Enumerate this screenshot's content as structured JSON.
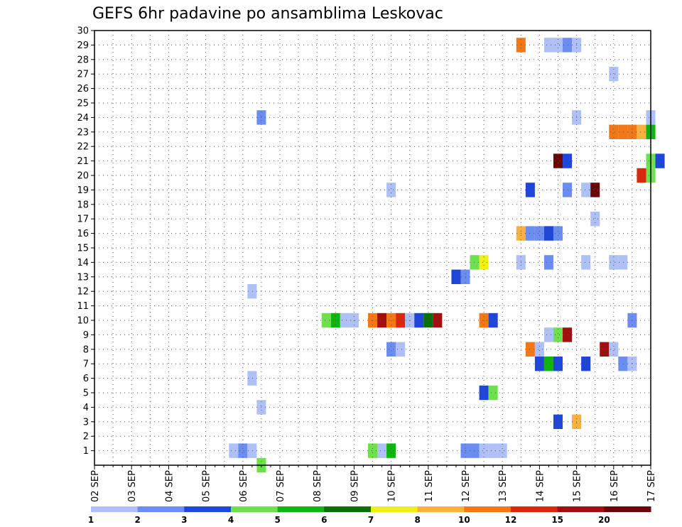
{
  "chart_data": {
    "type": "heatmap",
    "title": "GEFS 6hr padavine po ansamblima Leskovac",
    "xlabel": "",
    "ylabel": "",
    "x_ticks": [
      "02 SEP",
      "03 SEP",
      "04 SEP",
      "05 SEP",
      "06 SEP",
      "07 SEP",
      "08 SEP",
      "09 SEP",
      "10 SEP",
      "11 SEP",
      "12 SEP",
      "13 SEP",
      "14 SEP",
      "15 SEP",
      "16 SEP",
      "17 SEP"
    ],
    "x_range_days": [
      0,
      15
    ],
    "y_ticks": [
      1,
      2,
      3,
      4,
      5,
      6,
      7,
      8,
      9,
      10,
      11,
      12,
      13,
      14,
      15,
      16,
      17,
      18,
      19,
      20,
      21,
      22,
      23,
      24,
      25,
      26,
      27,
      28,
      29,
      30
    ],
    "ylim": [
      0,
      30
    ],
    "grid": true,
    "colorbar": {
      "bounds": [
        1,
        2,
        3,
        4,
        5,
        6,
        7,
        8,
        10,
        12,
        15,
        20
      ],
      "labels": [
        "1",
        "2",
        "3",
        "4",
        "5",
        "6",
        "7",
        "8",
        "10",
        "12",
        "15",
        "20"
      ],
      "colors": [
        "#aec0f5",
        "#6b8def",
        "#1e46d8",
        "#6ee04e",
        "#10b410",
        "#0a6e0a",
        "#f0f014",
        "#f8b040",
        "#f07818",
        "#d82810",
        "#a01010",
        "#6a0606"
      ]
    },
    "cells": [
      {
        "x": 3.75,
        "y": 1,
        "v": 1
      },
      {
        "x": 4.0,
        "y": 1,
        "v": 2
      },
      {
        "x": 4.25,
        "y": 1,
        "v": 1
      },
      {
        "x": 4.5,
        "y": 0,
        "v": 4
      },
      {
        "x": 7.5,
        "y": 1,
        "v": 4
      },
      {
        "x": 7.75,
        "y": 1,
        "v": 1
      },
      {
        "x": 8.0,
        "y": 1,
        "v": 5
      },
      {
        "x": 10.0,
        "y": 1,
        "v": 2
      },
      {
        "x": 10.25,
        "y": 1,
        "v": 2
      },
      {
        "x": 10.5,
        "y": 1,
        "v": 1
      },
      {
        "x": 10.75,
        "y": 1,
        "v": 1
      },
      {
        "x": 11.0,
        "y": 1,
        "v": 1
      },
      {
        "x": 12.5,
        "y": 3,
        "v": 3
      },
      {
        "x": 13.0,
        "y": 3,
        "v": 8
      },
      {
        "x": 4.5,
        "y": 4,
        "v": 1
      },
      {
        "x": 10.5,
        "y": 5,
        "v": 3
      },
      {
        "x": 10.75,
        "y": 5,
        "v": 4
      },
      {
        "x": 4.25,
        "y": 6,
        "v": 1
      },
      {
        "x": 12.0,
        "y": 7,
        "v": 3
      },
      {
        "x": 12.25,
        "y": 7,
        "v": 5
      },
      {
        "x": 12.5,
        "y": 7,
        "v": 3
      },
      {
        "x": 13.25,
        "y": 7,
        "v": 3
      },
      {
        "x": 14.25,
        "y": 7,
        "v": 2
      },
      {
        "x": 14.5,
        "y": 7,
        "v": 1
      },
      {
        "x": 8.0,
        "y": 8,
        "v": 2
      },
      {
        "x": 8.25,
        "y": 8,
        "v": 1
      },
      {
        "x": 11.75,
        "y": 8,
        "v": 10
      },
      {
        "x": 12.0,
        "y": 8,
        "v": 1
      },
      {
        "x": 13.75,
        "y": 8,
        "v": 15
      },
      {
        "x": 14.0,
        "y": 8,
        "v": 1
      },
      {
        "x": 12.25,
        "y": 9,
        "v": 1
      },
      {
        "x": 12.5,
        "y": 9,
        "v": 4
      },
      {
        "x": 12.75,
        "y": 9,
        "v": 15
      },
      {
        "x": 6.25,
        "y": 10,
        "v": 4
      },
      {
        "x": 6.5,
        "y": 10,
        "v": 5
      },
      {
        "x": 6.75,
        "y": 10,
        "v": 1
      },
      {
        "x": 7.0,
        "y": 10,
        "v": 1
      },
      {
        "x": 7.5,
        "y": 10,
        "v": 10
      },
      {
        "x": 7.75,
        "y": 10,
        "v": 15
      },
      {
        "x": 8.0,
        "y": 10,
        "v": 10
      },
      {
        "x": 8.25,
        "y": 10,
        "v": 12
      },
      {
        "x": 8.5,
        "y": 10,
        "v": 1
      },
      {
        "x": 8.75,
        "y": 10,
        "v": 3
      },
      {
        "x": 9.0,
        "y": 10,
        "v": 6
      },
      {
        "x": 9.25,
        "y": 10,
        "v": 15
      },
      {
        "x": 10.5,
        "y": 10,
        "v": 10
      },
      {
        "x": 10.75,
        "y": 10,
        "v": 3
      },
      {
        "x": 14.5,
        "y": 10,
        "v": 2
      },
      {
        "x": 4.25,
        "y": 12,
        "v": 1
      },
      {
        "x": 9.75,
        "y": 13,
        "v": 3
      },
      {
        "x": 10.0,
        "y": 13,
        "v": 2
      },
      {
        "x": 10.25,
        "y": 14,
        "v": 4
      },
      {
        "x": 10.5,
        "y": 14,
        "v": 7
      },
      {
        "x": 11.5,
        "y": 14,
        "v": 1
      },
      {
        "x": 12.25,
        "y": 14,
        "v": 2
      },
      {
        "x": 13.25,
        "y": 14,
        "v": 1
      },
      {
        "x": 14.0,
        "y": 14,
        "v": 1
      },
      {
        "x": 14.25,
        "y": 14,
        "v": 1
      },
      {
        "x": 11.5,
        "y": 16,
        "v": 8
      },
      {
        "x": 11.75,
        "y": 16,
        "v": 2
      },
      {
        "x": 12.0,
        "y": 16,
        "v": 2
      },
      {
        "x": 12.25,
        "y": 16,
        "v": 3
      },
      {
        "x": 12.5,
        "y": 16,
        "v": 2
      },
      {
        "x": 13.5,
        "y": 17,
        "v": 1
      },
      {
        "x": 8.0,
        "y": 19,
        "v": 1
      },
      {
        "x": 11.75,
        "y": 19,
        "v": 3
      },
      {
        "x": 12.75,
        "y": 19,
        "v": 2
      },
      {
        "x": 13.25,
        "y": 19,
        "v": 1
      },
      {
        "x": 13.5,
        "y": 19,
        "v": 20
      },
      {
        "x": 14.75,
        "y": 20,
        "v": 12
      },
      {
        "x": 15.0,
        "y": 20,
        "v": 4
      },
      {
        "x": 12.5,
        "y": 21,
        "v": 20
      },
      {
        "x": 12.75,
        "y": 21,
        "v": 3
      },
      {
        "x": 15.0,
        "y": 21,
        "v": 4
      },
      {
        "x": 15.25,
        "y": 21,
        "v": 3
      },
      {
        "x": 14.0,
        "y": 23,
        "v": 10
      },
      {
        "x": 14.25,
        "y": 23,
        "v": 10
      },
      {
        "x": 14.5,
        "y": 23,
        "v": 10
      },
      {
        "x": 14.75,
        "y": 23,
        "v": 8
      },
      {
        "x": 15.0,
        "y": 23,
        "v": 5
      },
      {
        "x": 4.5,
        "y": 24,
        "v": 2
      },
      {
        "x": 13.0,
        "y": 24,
        "v": 1
      },
      {
        "x": 15.0,
        "y": 24,
        "v": 1
      },
      {
        "x": 14.0,
        "y": 27,
        "v": 1
      },
      {
        "x": 11.5,
        "y": 29,
        "v": 10
      },
      {
        "x": 12.25,
        "y": 29,
        "v": 1
      },
      {
        "x": 12.5,
        "y": 29,
        "v": 1
      },
      {
        "x": 12.75,
        "y": 29,
        "v": 2
      },
      {
        "x": 13.0,
        "y": 29,
        "v": 1
      }
    ]
  }
}
